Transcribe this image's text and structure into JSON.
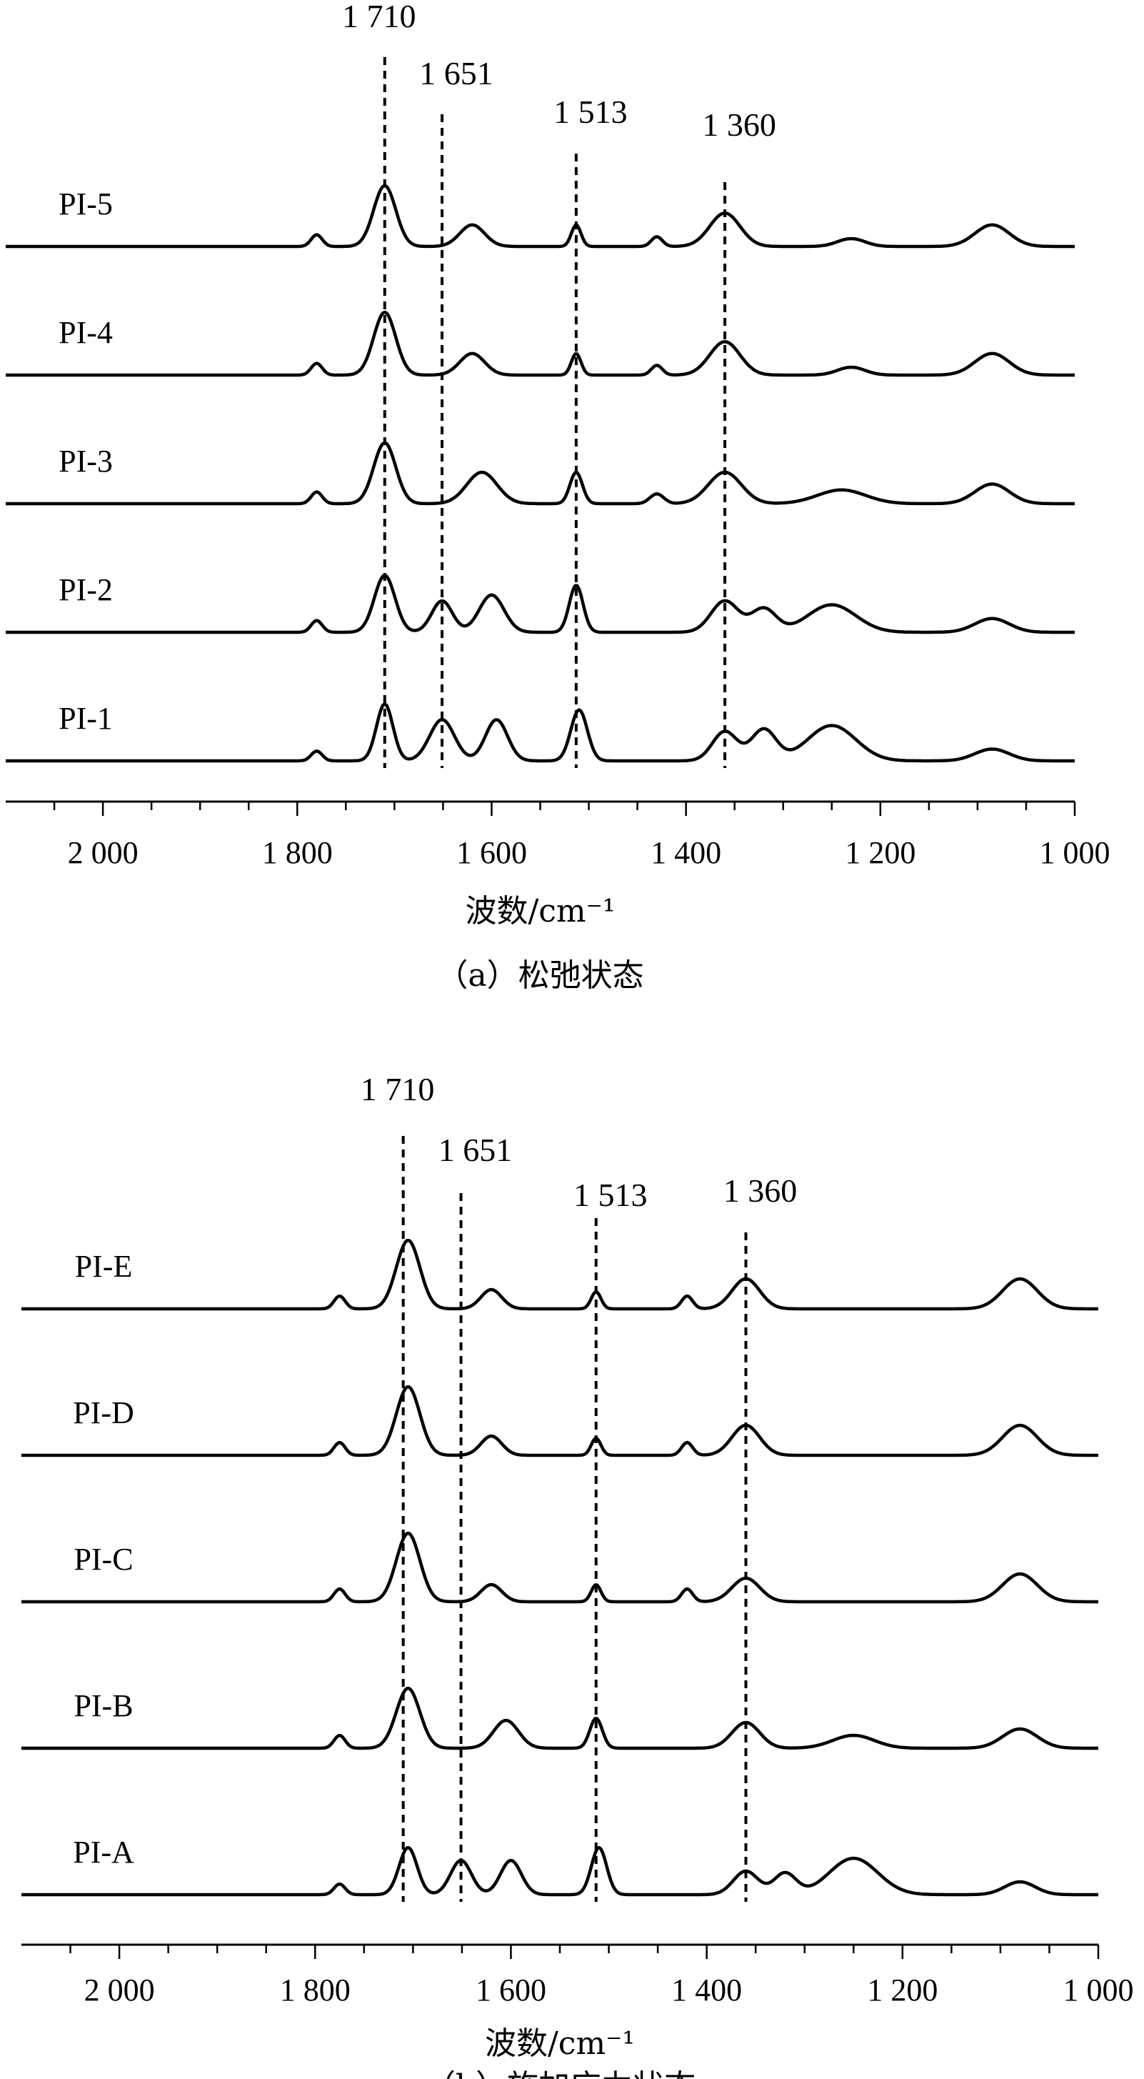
{
  "chart_data": [
    {
      "type": "line",
      "caption": "（a）松弛状态",
      "xlabel": "波数/cm⁻¹",
      "ylabel": "",
      "xlim": [
        2100,
        1000
      ],
      "x_reversed": true,
      "ticks": [
        2000,
        1800,
        1600,
        1400,
        1200,
        1000
      ],
      "tick_labels": [
        "2 000",
        "1 800",
        "1 600",
        "1 400",
        "1 200",
        "1 000"
      ],
      "grid": false,
      "peak_markers": [
        {
          "x": 1710,
          "label": "1 710"
        },
        {
          "x": 1651,
          "label": "1 651"
        },
        {
          "x": 1513,
          "label": "1 513"
        },
        {
          "x": 1360,
          "label": "1 360"
        }
      ],
      "series": [
        {
          "name": "PI-5",
          "peaks": [
            [
              1780,
              0.3,
              8
            ],
            [
              1710,
              1.55,
              16
            ],
            [
              1620,
              0.55,
              18
            ],
            [
              1513,
              0.55,
              7
            ],
            [
              1430,
              0.25,
              8
            ],
            [
              1360,
              0.85,
              22
            ],
            [
              1230,
              0.2,
              20
            ],
            [
              1085,
              0.55,
              25
            ]
          ]
        },
        {
          "name": "PI-4",
          "peaks": [
            [
              1780,
              0.3,
              8
            ],
            [
              1710,
              1.6,
              16
            ],
            [
              1620,
              0.55,
              18
            ],
            [
              1513,
              0.55,
              7
            ],
            [
              1430,
              0.25,
              8
            ],
            [
              1360,
              0.85,
              22
            ],
            [
              1230,
              0.2,
              20
            ],
            [
              1085,
              0.55,
              25
            ]
          ]
        },
        {
          "name": "PI-3",
          "peaks": [
            [
              1780,
              0.3,
              8
            ],
            [
              1710,
              1.55,
              16
            ],
            [
              1610,
              0.8,
              22
            ],
            [
              1513,
              0.8,
              9
            ],
            [
              1430,
              0.25,
              10
            ],
            [
              1360,
              0.8,
              24
            ],
            [
              1240,
              0.35,
              35
            ],
            [
              1085,
              0.5,
              25
            ]
          ]
        },
        {
          "name": "PI-2",
          "peaks": [
            [
              1780,
              0.3,
              8
            ],
            [
              1710,
              1.45,
              15
            ],
            [
              1651,
              0.8,
              15
            ],
            [
              1600,
              0.95,
              18
            ],
            [
              1513,
              1.2,
              10
            ],
            [
              1360,
              0.8,
              20
            ],
            [
              1320,
              0.6,
              18
            ],
            [
              1250,
              0.7,
              35
            ],
            [
              1085,
              0.35,
              25
            ]
          ]
        },
        {
          "name": "PI-1",
          "peaks": [
            [
              1780,
              0.25,
              8
            ],
            [
              1710,
              1.45,
              12
            ],
            [
              1651,
              1.05,
              18
            ],
            [
              1595,
              1.05,
              16
            ],
            [
              1510,
              1.3,
              12
            ],
            [
              1360,
              0.75,
              18
            ],
            [
              1320,
              0.8,
              18
            ],
            [
              1250,
              0.9,
              35
            ],
            [
              1085,
              0.3,
              25
            ]
          ]
        }
      ]
    },
    {
      "type": "line",
      "caption": "（b）施加应力状态",
      "xlabel": "波数/cm⁻¹",
      "ylabel": "",
      "xlim": [
        2100,
        1000
      ],
      "x_reversed": true,
      "ticks": [
        2000,
        1800,
        1600,
        1400,
        1200,
        1000
      ],
      "tick_labels": [
        "2 000",
        "1 800",
        "1 600",
        "1 400",
        "1 200",
        "1 000"
      ],
      "grid": false,
      "peak_markers": [
        {
          "x": 1710,
          "label": "1 710"
        },
        {
          "x": 1651,
          "label": "1 651"
        },
        {
          "x": 1513,
          "label": "1 513"
        },
        {
          "x": 1360,
          "label": "1 360"
        }
      ],
      "series": [
        {
          "name": "PI-E",
          "peaks": [
            [
              1775,
              0.3,
              8
            ],
            [
              1705,
              1.6,
              17
            ],
            [
              1620,
              0.45,
              15
            ],
            [
              1513,
              0.4,
              7
            ],
            [
              1420,
              0.3,
              8
            ],
            [
              1360,
              0.7,
              20
            ],
            [
              1080,
              0.7,
              25
            ]
          ]
        },
        {
          "name": "PI-D",
          "peaks": [
            [
              1775,
              0.3,
              8
            ],
            [
              1705,
              1.6,
              17
            ],
            [
              1620,
              0.45,
              15
            ],
            [
              1513,
              0.4,
              7
            ],
            [
              1420,
              0.3,
              8
            ],
            [
              1360,
              0.7,
              20
            ],
            [
              1080,
              0.7,
              25
            ]
          ]
        },
        {
          "name": "PI-C",
          "peaks": [
            [
              1775,
              0.3,
              8
            ],
            [
              1705,
              1.6,
              17
            ],
            [
              1620,
              0.4,
              15
            ],
            [
              1513,
              0.4,
              7
            ],
            [
              1420,
              0.3,
              8
            ],
            [
              1360,
              0.55,
              20
            ],
            [
              1080,
              0.65,
              25
            ]
          ]
        },
        {
          "name": "PI-B",
          "peaks": [
            [
              1775,
              0.3,
              8
            ],
            [
              1705,
              1.4,
              17
            ],
            [
              1605,
              0.65,
              18
            ],
            [
              1513,
              0.7,
              9
            ],
            [
              1360,
              0.6,
              20
            ],
            [
              1250,
              0.3,
              30
            ],
            [
              1080,
              0.45,
              25
            ]
          ]
        },
        {
          "name": "PI-A",
          "peaks": [
            [
              1775,
              0.25,
              8
            ],
            [
              1705,
              1.1,
              13
            ],
            [
              1651,
              0.8,
              15
            ],
            [
              1600,
              0.8,
              15
            ],
            [
              1510,
              1.1,
              11
            ],
            [
              1360,
              0.55,
              18
            ],
            [
              1320,
              0.5,
              16
            ],
            [
              1250,
              0.85,
              35
            ],
            [
              1080,
              0.3,
              22
            ]
          ]
        }
      ]
    }
  ]
}
